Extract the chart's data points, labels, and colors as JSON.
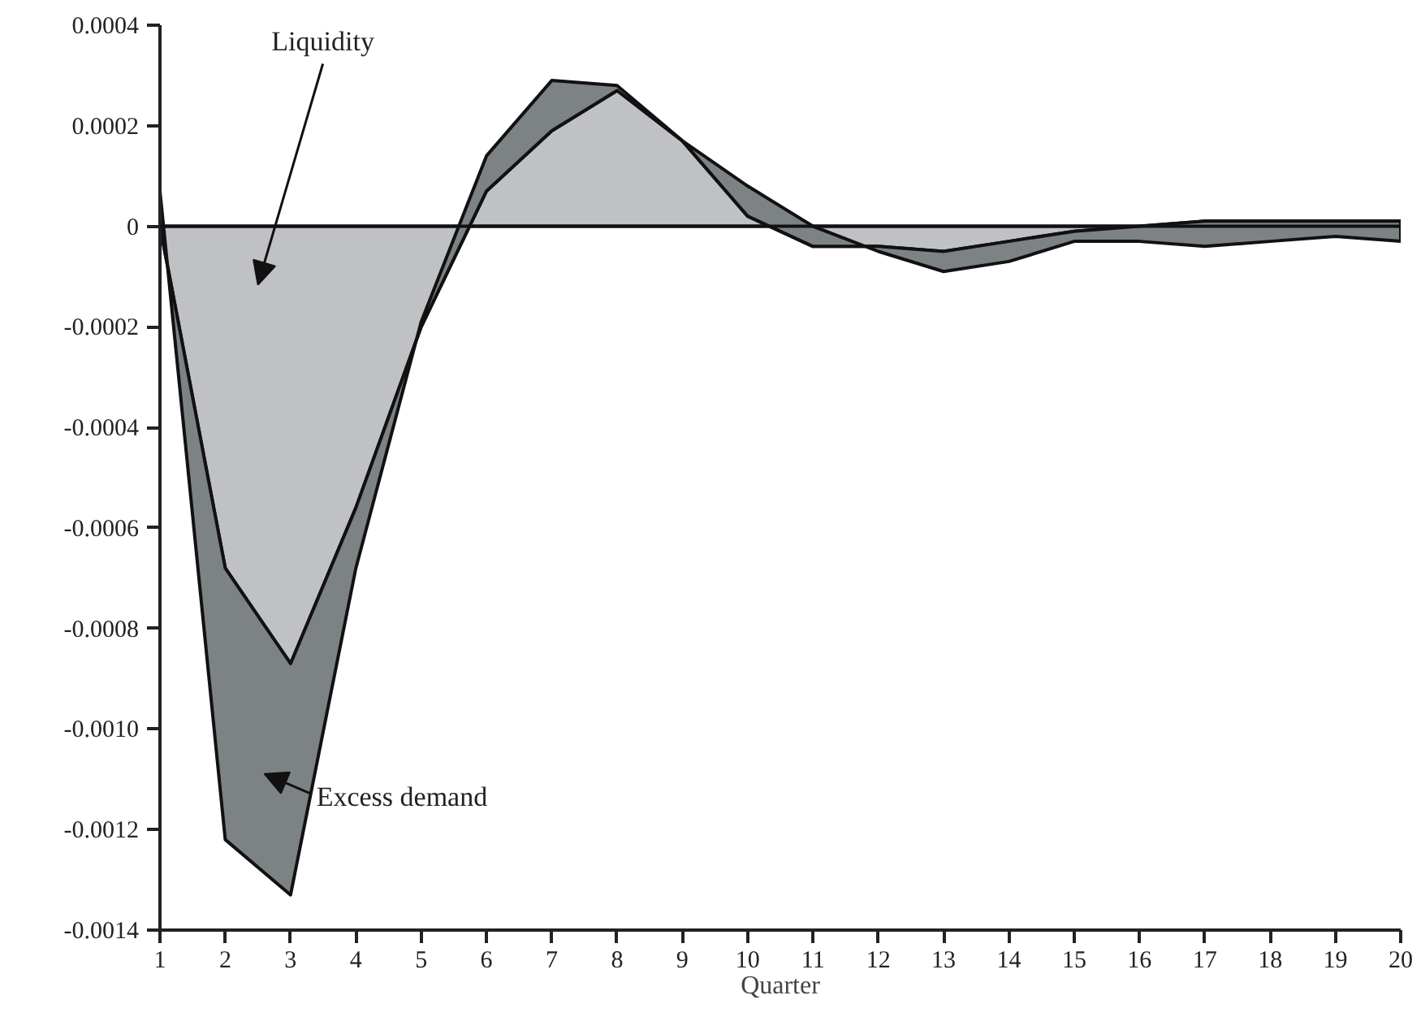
{
  "chart_data": {
    "type": "area",
    "stacked": true,
    "xlabel": "Quarter",
    "x": [
      1,
      2,
      3,
      4,
      5,
      6,
      7,
      8,
      9,
      10,
      11,
      12,
      13,
      14,
      15,
      16,
      17,
      18,
      19,
      20
    ],
    "series": [
      {
        "name": "Liquidity",
        "color": "#c0c1c5",
        "values": [
          0.0,
          -0.00068,
          -0.00087,
          -0.00056,
          -0.0002,
          7e-05,
          0.00019,
          0.00027,
          0.00017,
          2e-05,
          -4e-05,
          -4e-05,
          -5e-05,
          -3e-05,
          -1e-05,
          0.0,
          1e-05,
          1e-05,
          1e-05,
          1e-05
        ]
      },
      {
        "name": "Excess demand",
        "color": "#7d8285",
        "values": [
          7e-05,
          -0.00054,
          -0.00046,
          -0.00012,
          1e-05,
          7e-05,
          0.0001,
          1e-05,
          0.0,
          6e-05,
          4e-05,
          -1e-05,
          -4e-05,
          -4e-05,
          -2e-05,
          -3e-05,
          -5e-05,
          -4e-05,
          -3e-05,
          -4e-05
        ]
      }
    ],
    "xlim": [
      1,
      20
    ],
    "xticks": [
      1,
      2,
      3,
      4,
      5,
      6,
      7,
      8,
      9,
      10,
      11,
      12,
      13,
      14,
      15,
      16,
      17,
      18,
      19,
      20
    ],
    "ylim": [
      -0.0014,
      0.0004
    ],
    "yticks": [
      {
        "value": 0.0004,
        "label": "0.0004"
      },
      {
        "value": 0.0002,
        "label": "0.0002"
      },
      0,
      {
        "value": -0.0002,
        "label": "-0.0002"
      },
      {
        "value": -0.0004,
        "label": "-0.0004"
      },
      {
        "value": -0.0006,
        "label": "-0.0006"
      },
      {
        "value": -0.0008,
        "label": "-0.0008"
      },
      {
        "value": -0.001,
        "label": "-0.0010"
      },
      {
        "value": -0.0012,
        "label": "-0.0012"
      },
      {
        "value": -0.0014,
        "label": "-0.0014"
      }
    ],
    "ref_lines": [
      {
        "axis": "y",
        "value": 0,
        "color": "#111111"
      }
    ],
    "grid": false
  }
}
